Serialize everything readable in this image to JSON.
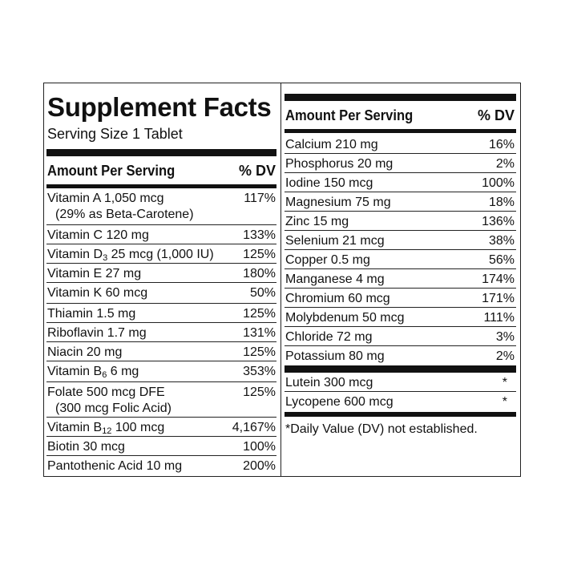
{
  "panel": {
    "title": "Supplement Facts",
    "serving_size": "Serving Size 1 Tablet",
    "header_amount": "Amount Per Serving",
    "header_dv": "% DV"
  },
  "left_rows": [
    {
      "name": "Vitamin A 1,050 mcg",
      "sub": "(29% as Beta-Carotene)",
      "dv": "117%"
    },
    {
      "name": "Vitamin C 120 mg",
      "dv": "133%"
    },
    {
      "pre": "Vitamin D",
      "subscript": "3",
      "post": " 25 mcg (1,000 IU)",
      "dv": "125%"
    },
    {
      "name": "Vitamin E 27 mg",
      "dv": "180%"
    },
    {
      "name": "Vitamin K 60 mcg",
      "dv": "50%"
    },
    {
      "name": "Thiamin 1.5 mg",
      "dv": "125%"
    },
    {
      "name": "Riboflavin 1.7 mg",
      "dv": "131%"
    },
    {
      "name": "Niacin 20 mg",
      "dv": "125%"
    },
    {
      "pre": "Vitamin B",
      "subscript": "6",
      "post": " 6 mg",
      "dv": "353%"
    },
    {
      "name": "Folate 500 mcg DFE",
      "sub": "(300 mcg Folic Acid)",
      "dv": "125%"
    },
    {
      "pre": "Vitamin B",
      "subscript": "12",
      "post": " 100 mcg",
      "dv": "4,167%"
    },
    {
      "name": "Biotin 30 mcg",
      "dv": "100%"
    },
    {
      "name": "Pantothenic Acid 10 mg",
      "dv": "200%"
    }
  ],
  "right_rows": [
    {
      "name": "Calcium 210 mg",
      "dv": "16%"
    },
    {
      "name": "Phosphorus 20 mg",
      "dv": "2%"
    },
    {
      "name": "Iodine 150 mcg",
      "dv": "100%"
    },
    {
      "name": "Magnesium 75 mg",
      "dv": "18%"
    },
    {
      "name": "Zinc 15 mg",
      "dv": "136%"
    },
    {
      "name": "Selenium 21 mcg",
      "dv": "38%"
    },
    {
      "name": "Copper 0.5 mg",
      "dv": "56%"
    },
    {
      "name": "Manganese 4 mg",
      "dv": "174%"
    },
    {
      "name": "Chromium 60 mcg",
      "dv": "171%"
    },
    {
      "name": "Molybdenum 50 mcg",
      "dv": "111%"
    },
    {
      "name": "Chloride 72 mg",
      "dv": "3%"
    },
    {
      "name": "Potassium 80 mg",
      "dv": "2%"
    }
  ],
  "right_extra_rows": [
    {
      "name": "Lutein 300 mcg",
      "dv": "*"
    },
    {
      "name": "Lycopene 600 mcg",
      "dv": "*"
    }
  ],
  "footnote": "*Daily Value (DV) not established."
}
